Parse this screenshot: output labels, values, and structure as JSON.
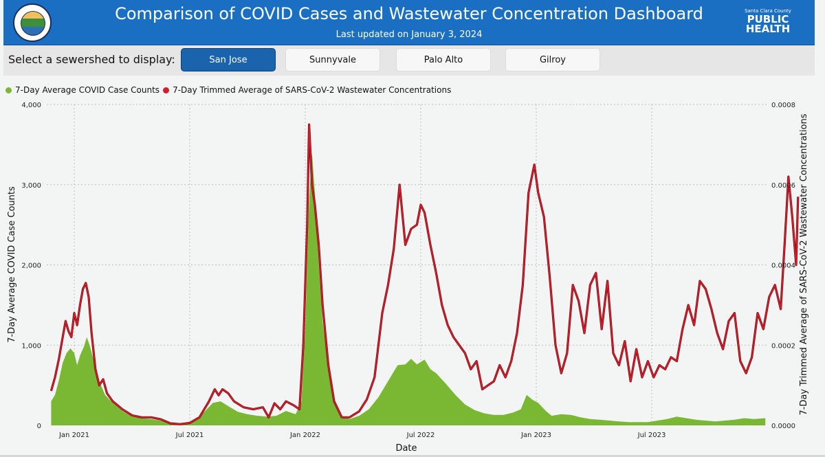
{
  "header": {
    "title": "Comparison of COVID Cases and Wastewater Concentration Dashboard",
    "subtitle": "Last updated on January 3, 2024",
    "logo_small": "Santa Clara County",
    "logo_line1": "PUBLIC",
    "logo_line2": "HEALTH",
    "brand_color": "#1a6fc2"
  },
  "selector": {
    "label": "Select a sewershed to display:",
    "options": [
      {
        "label": "San Jose",
        "active": true
      },
      {
        "label": "Sunnyvale",
        "active": false
      },
      {
        "label": "Palo Alto",
        "active": false
      },
      {
        "label": "Gilroy",
        "active": false
      }
    ],
    "active_color": "#1a63ad"
  },
  "legend": {
    "items": [
      {
        "label": "7-Day Average COVID Case Counts",
        "color": "#7ab833"
      },
      {
        "label": "7-Day Trimmed Average of SARS-CoV-2 Wastewater Concentrations",
        "color": "#d21f2b"
      }
    ]
  },
  "chart_data": {
    "type": "area+line",
    "title": "",
    "xlabel": "Date",
    "ylabel": "7-Day Average COVID Case Counts",
    "y2label": "7-Day Trimmed Average of SARS-CoV-2 Wastewater Concentrations",
    "ylim": [
      0,
      4000
    ],
    "y2lim": [
      0,
      0.0008
    ],
    "yticks": [
      "0",
      "1,000",
      "2,000",
      "3,000",
      "4,000"
    ],
    "y2ticks": [
      "0.0000",
      "0.0002",
      "0.0004",
      "0.0006",
      "0.0008"
    ],
    "xticks": [
      {
        "label": "Jan 2021",
        "month": 0
      },
      {
        "label": "Jul 2021",
        "month": 6
      },
      {
        "label": "Jan 2022",
        "month": 12
      },
      {
        "label": "Jul 2022",
        "month": 18
      },
      {
        "label": "Jan 2023",
        "month": 24
      },
      {
        "label": "Jul 2023",
        "month": 30
      }
    ],
    "xrange_months": [
      -1.2,
      35.9
    ],
    "grid": true,
    "legend_position": "top-left",
    "series": [
      {
        "name": "7-Day Average COVID Case Counts",
        "type": "area",
        "axis": "left",
        "color": "#7ab833",
        "points": [
          [
            -1.2,
            300
          ],
          [
            -1.0,
            380
          ],
          [
            -0.8,
            560
          ],
          [
            -0.6,
            780
          ],
          [
            -0.4,
            900
          ],
          [
            -0.2,
            960
          ],
          [
            0.0,
            900
          ],
          [
            0.15,
            750
          ],
          [
            0.3,
            870
          ],
          [
            0.5,
            980
          ],
          [
            0.65,
            1100
          ],
          [
            0.8,
            1000
          ],
          [
            1.0,
            820
          ],
          [
            1.3,
            550
          ],
          [
            1.6,
            380
          ],
          [
            2.0,
            280
          ],
          [
            2.5,
            180
          ],
          [
            3.0,
            110
          ],
          [
            3.5,
            90
          ],
          [
            4.0,
            80
          ],
          [
            4.5,
            60
          ],
          [
            5.0,
            30
          ],
          [
            5.5,
            20
          ],
          [
            6.0,
            25
          ],
          [
            6.3,
            60
          ],
          [
            6.8,
            180
          ],
          [
            7.2,
            280
          ],
          [
            7.6,
            300
          ],
          [
            8.0,
            240
          ],
          [
            8.5,
            170
          ],
          [
            9.0,
            140
          ],
          [
            9.5,
            120
          ],
          [
            10.0,
            110
          ],
          [
            10.5,
            120
          ],
          [
            11.0,
            180
          ],
          [
            11.5,
            140
          ],
          [
            11.8,
            300
          ],
          [
            12.0,
            1200
          ],
          [
            12.2,
            2800
          ],
          [
            12.35,
            3400
          ],
          [
            12.5,
            2900
          ],
          [
            12.7,
            2000
          ],
          [
            12.9,
            1300
          ],
          [
            13.2,
            700
          ],
          [
            13.5,
            300
          ],
          [
            13.9,
            120
          ],
          [
            14.3,
            80
          ],
          [
            14.8,
            120
          ],
          [
            15.3,
            200
          ],
          [
            15.8,
            350
          ],
          [
            16.3,
            550
          ],
          [
            16.8,
            750
          ],
          [
            17.2,
            760
          ],
          [
            17.5,
            830
          ],
          [
            17.8,
            760
          ],
          [
            18.2,
            820
          ],
          [
            18.5,
            700
          ],
          [
            18.8,
            650
          ],
          [
            19.3,
            520
          ],
          [
            19.8,
            380
          ],
          [
            20.3,
            260
          ],
          [
            20.8,
            190
          ],
          [
            21.3,
            150
          ],
          [
            21.8,
            130
          ],
          [
            22.3,
            130
          ],
          [
            22.8,
            160
          ],
          [
            23.2,
            200
          ],
          [
            23.5,
            380
          ],
          [
            23.8,
            320
          ],
          [
            24.1,
            280
          ],
          [
            24.5,
            180
          ],
          [
            24.8,
            120
          ],
          [
            25.3,
            140
          ],
          [
            25.8,
            130
          ],
          [
            26.3,
            100
          ],
          [
            26.8,
            80
          ],
          [
            27.3,
            70
          ],
          [
            27.8,
            60
          ],
          [
            28.3,
            50
          ],
          [
            28.8,
            40
          ],
          [
            29.3,
            40
          ],
          [
            29.8,
            40
          ],
          [
            30.3,
            60
          ],
          [
            30.8,
            80
          ],
          [
            31.3,
            110
          ],
          [
            31.8,
            90
          ],
          [
            32.3,
            70
          ],
          [
            32.8,
            60
          ],
          [
            33.3,
            50
          ],
          [
            33.8,
            60
          ],
          [
            34.3,
            70
          ],
          [
            34.8,
            90
          ],
          [
            35.3,
            80
          ],
          [
            35.9,
            90
          ]
        ]
      },
      {
        "name": "7-Day Trimmed Average of SARS-CoV-2 Wastewater Concentrations",
        "type": "line",
        "axis": "right",
        "color": "#d21f2b",
        "points": [
          [
            -1.2,
            8.6e-05
          ],
          [
            -1.0,
            0.00012
          ],
          [
            -0.8,
            0.000165
          ],
          [
            -0.6,
            0.00022
          ],
          [
            -0.45,
            0.00026
          ],
          [
            -0.3,
            0.000235
          ],
          [
            -0.15,
            0.00022
          ],
          [
            0.0,
            0.00028
          ],
          [
            0.15,
            0.00025
          ],
          [
            0.3,
            0.0003
          ],
          [
            0.45,
            0.00034
          ],
          [
            0.6,
            0.000355
          ],
          [
            0.75,
            0.00032
          ],
          [
            0.9,
            0.00023
          ],
          [
            1.1,
            0.00014
          ],
          [
            1.3,
            0.0001
          ],
          [
            1.5,
            0.000115
          ],
          [
            1.7,
            8e-05
          ],
          [
            2.0,
            6e-05
          ],
          [
            2.5,
            4e-05
          ],
          [
            3.0,
            2.5e-05
          ],
          [
            3.5,
            2e-05
          ],
          [
            4.0,
            2e-05
          ],
          [
            4.5,
            1.5e-05
          ],
          [
            5.0,
            5e-06
          ],
          [
            5.5,
            3e-06
          ],
          [
            6.0,
            6e-06
          ],
          [
            6.5,
            2e-05
          ],
          [
            7.0,
            6e-05
          ],
          [
            7.3,
            9e-05
          ],
          [
            7.5,
            7.5e-05
          ],
          [
            7.7,
            9e-05
          ],
          [
            8.0,
            8e-05
          ],
          [
            8.3,
            6e-05
          ],
          [
            8.8,
            4.5e-05
          ],
          [
            9.3,
            4e-05
          ],
          [
            9.8,
            4.5e-05
          ],
          [
            10.1,
            2e-05
          ],
          [
            10.4,
            5.5e-05
          ],
          [
            10.7,
            4e-05
          ],
          [
            11.0,
            6e-05
          ],
          [
            11.4,
            5e-05
          ],
          [
            11.7,
            4e-05
          ],
          [
            11.9,
            0.0002
          ],
          [
            12.1,
            0.0005
          ],
          [
            12.2,
            0.00075
          ],
          [
            12.35,
            0.0006
          ],
          [
            12.5,
            0.00055
          ],
          [
            12.7,
            0.00045
          ],
          [
            12.9,
            0.0003
          ],
          [
            13.2,
            0.00015
          ],
          [
            13.5,
            6e-05
          ],
          [
            13.9,
            2e-05
          ],
          [
            14.3,
            2e-05
          ],
          [
            14.8,
            3.5e-05
          ],
          [
            15.2,
            6.5e-05
          ],
          [
            15.6,
            0.00012
          ],
          [
            16.0,
            0.00028
          ],
          [
            16.3,
            0.00035
          ],
          [
            16.6,
            0.00044
          ],
          [
            16.9,
            0.0006
          ],
          [
            17.2,
            0.00045
          ],
          [
            17.5,
            0.00049
          ],
          [
            17.8,
            0.0005
          ],
          [
            18.0,
            0.00055
          ],
          [
            18.2,
            0.00053
          ],
          [
            18.5,
            0.00045
          ],
          [
            18.8,
            0.00038
          ],
          [
            19.1,
            0.0003
          ],
          [
            19.4,
            0.00025
          ],
          [
            19.7,
            0.00022
          ],
          [
            20.0,
            0.0002
          ],
          [
            20.3,
            0.00018
          ],
          [
            20.6,
            0.00014
          ],
          [
            20.9,
            0.00016
          ],
          [
            21.2,
            9e-05
          ],
          [
            21.5,
            0.0001
          ],
          [
            21.8,
            0.00011
          ],
          [
            22.1,
            0.00015
          ],
          [
            22.4,
            0.00012
          ],
          [
            22.7,
            0.00016
          ],
          [
            23.0,
            0.00023
          ],
          [
            23.3,
            0.00035
          ],
          [
            23.6,
            0.00058
          ],
          [
            23.9,
            0.00065
          ],
          [
            24.1,
            0.00058
          ],
          [
            24.4,
            0.00052
          ],
          [
            24.7,
            0.00037
          ],
          [
            25.0,
            0.0002
          ],
          [
            25.3,
            0.00013
          ],
          [
            25.6,
            0.00018
          ],
          [
            25.9,
            0.00035
          ],
          [
            26.2,
            0.00031
          ],
          [
            26.5,
            0.00023
          ],
          [
            26.8,
            0.00035
          ],
          [
            27.1,
            0.00038
          ],
          [
            27.4,
            0.00024
          ],
          [
            27.7,
            0.00036
          ],
          [
            28.0,
            0.00018
          ],
          [
            28.3,
            0.00015
          ],
          [
            28.6,
            0.00021
          ],
          [
            28.9,
            0.00011
          ],
          [
            29.2,
            0.00019
          ],
          [
            29.5,
            0.00012
          ],
          [
            29.8,
            0.00016
          ],
          [
            30.1,
            0.00012
          ],
          [
            30.4,
            0.00015
          ],
          [
            30.7,
            0.00014
          ],
          [
            31.0,
            0.00017
          ],
          [
            31.3,
            0.00016
          ],
          [
            31.6,
            0.00024
          ],
          [
            31.9,
            0.0003
          ],
          [
            32.2,
            0.00025
          ],
          [
            32.5,
            0.00036
          ],
          [
            32.8,
            0.00034
          ],
          [
            33.1,
            0.00029
          ],
          [
            33.4,
            0.00023
          ],
          [
            33.7,
            0.00019
          ],
          [
            34.0,
            0.00026
          ],
          [
            34.3,
            0.00028
          ],
          [
            34.6,
            0.00016
          ],
          [
            34.9,
            0.00013
          ],
          [
            35.2,
            0.00017
          ],
          [
            35.5,
            0.00028
          ],
          [
            35.8,
            0.00024
          ],
          [
            36.1,
            0.00032
          ],
          [
            36.4,
            0.00035
          ],
          [
            36.7,
            0.00029
          ],
          [
            36.9,
            0.00045
          ],
          [
            37.1,
            0.00062
          ],
          [
            37.3,
            0.00052
          ],
          [
            37.5,
            0.0004
          ],
          [
            37.6,
            0.00057
          ]
        ]
      }
    ]
  }
}
